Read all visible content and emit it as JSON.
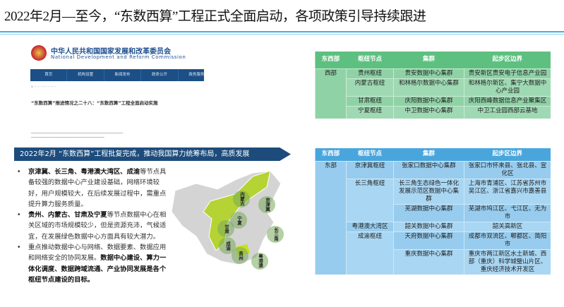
{
  "title": "2022年2月—至今，“东数西算”工程正式全面启动，各项政策引导持续跟进",
  "screenshot": {
    "org_name": "中华人民共和国国家发展和改革委员会",
    "org_name_en": "National Development and Reform Commission",
    "nav": [
      "首页",
      "机构设置",
      "新闻发布",
      "政务公开",
      "政务服务"
    ],
    "article_title": "“东数西算”推进情况之二十八：“东数西算”工程全面启动实施"
  },
  "banner": "2022年2月 “东数西算”工程批复完成，推动我国算力统筹布局，高质发展",
  "bullets": [
    {
      "bold": "京津冀、长三角、粤港澳大湾区、成渝",
      "text": "等节点具备较强的数据中心产业建设基础，网络环境较好，用户规模较大，在后续发展过程中，需重点提升算力服务质量。"
    },
    {
      "bold": "贵州、内蒙古、甘肃及宁夏",
      "text": "等节点数据中心在相关区域的市场规模较少，但是资源充沛，气候适宜，在发展绿色数据中心方面具有较大潜力。"
    },
    {
      "text": "重点推动数据中心与网络、数据要素、数据应用和网络安全的协同发展。",
      "bold": "数据中心建设、算力一体化调度、数据跨域流通、产业协同发展是各个枢纽节点建设的目标。"
    }
  ],
  "map_labels": [
    "内蒙古",
    "京津冀",
    "宁夏",
    "甘肃",
    "成渝",
    "长三角",
    "贵州",
    "粤港澳"
  ],
  "west_table": {
    "headers": [
      "东西部",
      "枢纽节点",
      "集群",
      "起步区边界"
    ],
    "region": "西部",
    "rows": [
      [
        "贵州枢纽",
        "贵安数据中心集群",
        "贵安新区贵安电子信息产业园"
      ],
      [
        "内蒙古枢纽",
        "和林格尔数据中心集群",
        "和林格尔新区、集宁大数据中心产业园"
      ],
      [
        "甘肃枢纽",
        "庆阳数据中心集群",
        "庆阳西峰数据信息产业聚集区"
      ],
      [
        "宁夏枢纽",
        "中卫数据中心集群",
        "中卫工业园西部云基地"
      ]
    ]
  },
  "east_table": {
    "headers": [
      "东西部",
      "枢纽节点",
      "集群",
      "起步区边界"
    ],
    "region": "东部",
    "nodes": [
      "京津冀枢纽",
      "长三角枢纽",
      "粤港澳大湾区",
      "成渝枢纽"
    ],
    "clusters": [
      "张家口数据中心集群",
      "长三角生态绿色一体化发展示范区数据中心集群",
      "芜湖数据中心集群",
      "韶关数据中心集群",
      "天府数据中心集群",
      "重庆数据中心集群"
    ],
    "areas": [
      "张家口市怀来县、张北县、宣化区",
      "上海市青浦区、江苏省苏州市吴江区、浙江省嘉兴市嘉善县",
      "芜湖市鸠江区、弋江区、无为市",
      "韶关高新区",
      "成都市双流区、郫都区、简阳市",
      "重庆市两江新区水土新城、西部（重庆）科学城璧山片区、重庆经济技术开发区"
    ]
  },
  "colors": {
    "title_rule": "#3fb0e4",
    "banner": "#1d4c7c",
    "west_header": "#5ec080",
    "east_header": "#49a6dc"
  }
}
